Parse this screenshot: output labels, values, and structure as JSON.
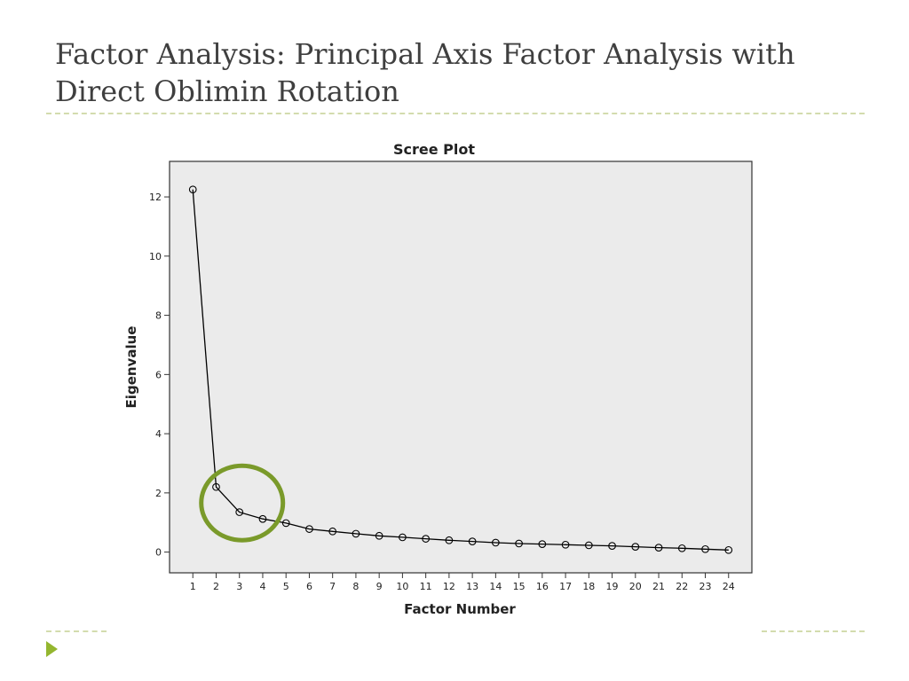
{
  "slide": {
    "title": "Factor Analysis: Principal Axis Factor Analysis with Direct Oblimin Rotation"
  },
  "colors": {
    "title_text": "#3f3f3f",
    "divider": "#d3dcae",
    "bullet": "#94b62f",
    "highlight_circle": "#7a9a2a",
    "plot_background": "#ebebeb"
  },
  "icons": {
    "bullet": "triangle-bullet-icon"
  },
  "chart_data": {
    "type": "line",
    "title": "Scree Plot",
    "xlabel": "Factor Number",
    "ylabel": "Eigenvalue",
    "x": [
      1,
      2,
      3,
      4,
      5,
      6,
      7,
      8,
      9,
      10,
      11,
      12,
      13,
      14,
      15,
      16,
      17,
      18,
      19,
      20,
      21,
      22,
      23,
      24
    ],
    "x_tick_labels": [
      "1",
      "2",
      "3",
      "4",
      "5",
      "6",
      "7",
      "8",
      "9",
      "10",
      "11",
      "12",
      "13",
      "14",
      "15",
      "16",
      "17",
      "18",
      "19",
      "20",
      "21",
      "22",
      "23",
      "24"
    ],
    "y_ticks": [
      0,
      2,
      4,
      6,
      8,
      10,
      12
    ],
    "y_tick_labels": [
      "0",
      "2",
      "4",
      "6",
      "8",
      "10",
      "12"
    ],
    "series": [
      {
        "values": [
          12.25,
          2.2,
          1.35,
          1.12,
          0.98,
          0.78,
          0.7,
          0.62,
          0.55,
          0.5,
          0.45,
          0.4,
          0.36,
          0.32,
          0.29,
          0.27,
          0.25,
          0.23,
          0.21,
          0.18,
          0.15,
          0.13,
          0.1,
          0.07
        ],
        "marker": "open-circle",
        "color": "#000000"
      }
    ],
    "xlim": [
      0,
      25
    ],
    "ylim": [
      -0.7,
      13.2
    ],
    "grid": false,
    "highlight": {
      "shape": "circle",
      "around_factors": [
        2,
        3,
        4
      ],
      "color": "#7a9a2a"
    }
  }
}
